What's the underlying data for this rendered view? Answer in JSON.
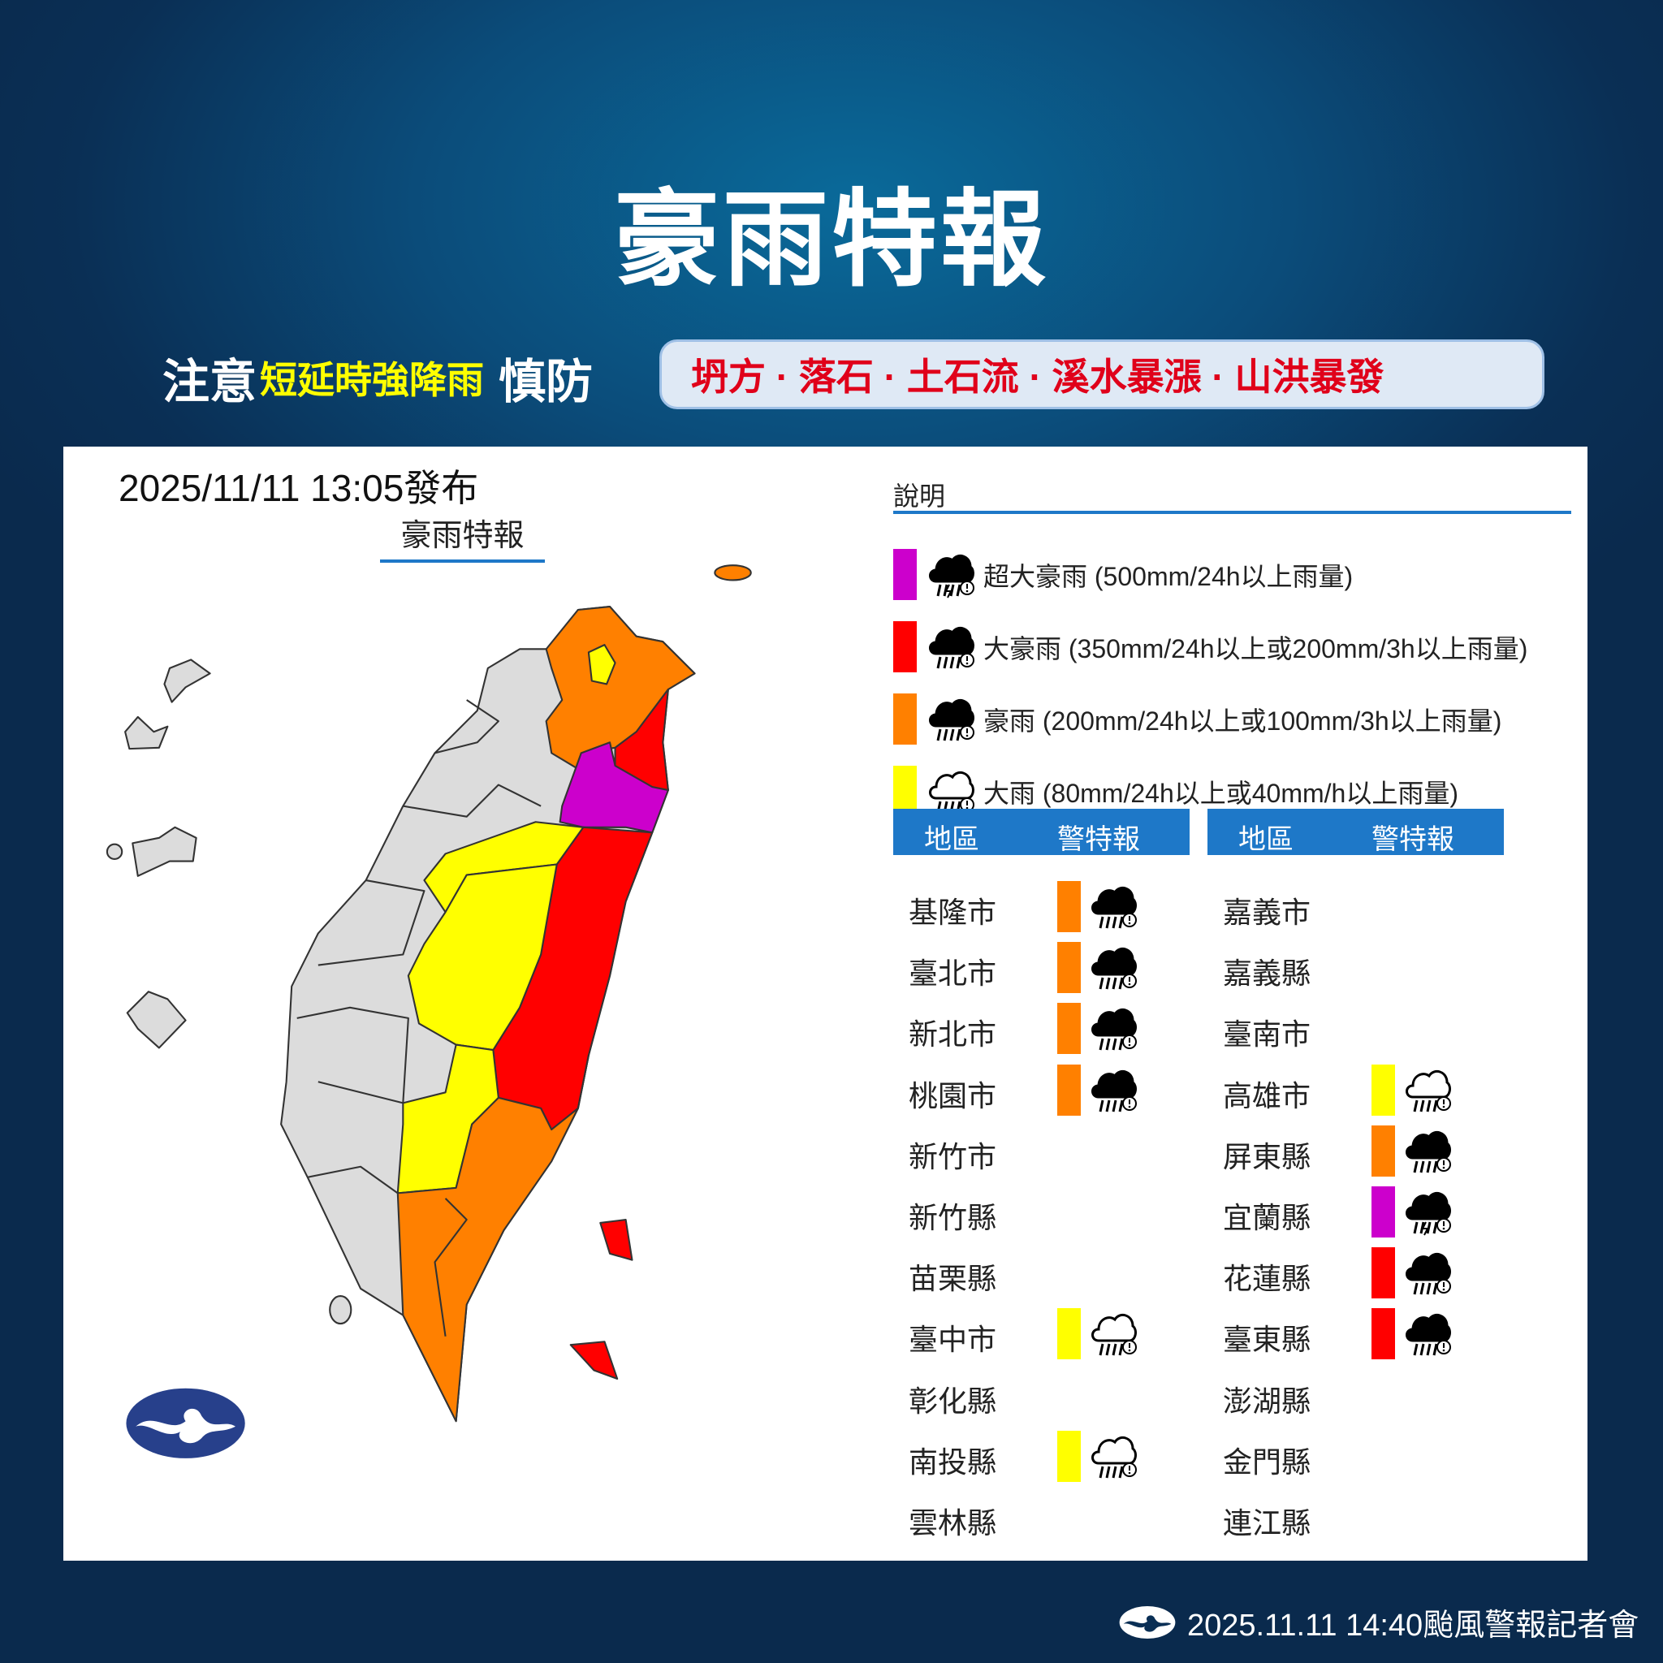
{
  "header": {
    "title": "豪雨特報",
    "notice_prefix": "注意",
    "notice_highlight": "短延時強降雨",
    "notice_suffix": "慎防",
    "hazards": "坍方 · 落石 · 土石流 · 溪水暴漲 · 山洪暴發"
  },
  "map": {
    "issued": "2025/11/11 13:05發布",
    "title": "豪雨特報",
    "logo": "中央氣象署"
  },
  "legend": {
    "title": "說明",
    "items": [
      {
        "level": "extremely_torrential",
        "label": "超大豪雨 (500mm/24h以上雨量)",
        "color": "#cc00cc",
        "icon": "cloud-torrential-rain-icon"
      },
      {
        "level": "torrential",
        "label": "大豪雨 (350mm/24h以上或200mm/3h以上雨量)",
        "color": "#ff0000",
        "icon": "cloud-heavy-rain-icon"
      },
      {
        "level": "extremely_heavy",
        "label": "豪雨 (200mm/24h以上或100mm/3h以上雨量)",
        "color": "#ff8000",
        "icon": "cloud-rain-icon"
      },
      {
        "level": "heavy",
        "label": "大雨 (80mm/24h以上或40mm/h以上雨量)",
        "color": "#ffff00",
        "icon": "cloud-outline-rain-icon"
      }
    ]
  },
  "table": {
    "col_region": "地區",
    "col_warning": "警特報",
    "left": [
      {
        "region": "基隆市",
        "level": "extremely_heavy"
      },
      {
        "region": "臺北市",
        "level": "extremely_heavy"
      },
      {
        "region": "新北市",
        "level": "extremely_heavy"
      },
      {
        "region": "桃園市",
        "level": "extremely_heavy"
      },
      {
        "region": "新竹市",
        "level": ""
      },
      {
        "region": "新竹縣",
        "level": ""
      },
      {
        "region": "苗栗縣",
        "level": ""
      },
      {
        "region": "臺中市",
        "level": "heavy"
      },
      {
        "region": "彰化縣",
        "level": ""
      },
      {
        "region": "南投縣",
        "level": "heavy"
      },
      {
        "region": "雲林縣",
        "level": ""
      }
    ],
    "right": [
      {
        "region": "嘉義市",
        "level": ""
      },
      {
        "region": "嘉義縣",
        "level": ""
      },
      {
        "region": "臺南市",
        "level": ""
      },
      {
        "region": "高雄市",
        "level": "heavy"
      },
      {
        "region": "屏東縣",
        "level": "extremely_heavy"
      },
      {
        "region": "宜蘭縣",
        "level": "extremely_torrential"
      },
      {
        "region": "花蓮縣",
        "level": "torrential"
      },
      {
        "region": "臺東縣",
        "level": "torrential"
      },
      {
        "region": "澎湖縣",
        "level": ""
      },
      {
        "region": "金門縣",
        "level": ""
      },
      {
        "region": "連江縣",
        "level": ""
      }
    ]
  },
  "footer": {
    "text": "2025.11.11  14:40颱風警報記者會"
  },
  "colors": {
    "gray_region": "#dcdcdc",
    "table_header": "#1e78c8"
  }
}
